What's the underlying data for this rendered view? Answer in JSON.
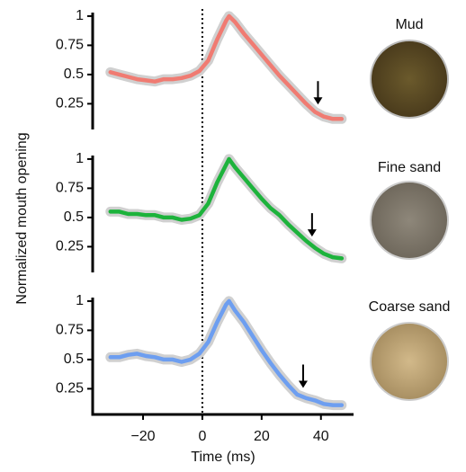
{
  "chart_data": [
    {
      "type": "line",
      "label": "Mud",
      "reference_x": 0,
      "marker_x": 39,
      "x": [
        -31,
        -28,
        -25,
        -22,
        -19,
        -16,
        -13,
        -10,
        -7,
        -4,
        -1,
        2,
        5,
        8,
        9,
        11,
        14,
        17,
        20,
        23,
        26,
        29,
        32,
        35,
        38,
        41,
        44,
        47
      ],
      "series": [
        {
          "color": "#f07b72",
          "values": [
            0.52,
            0.5,
            0.48,
            0.46,
            0.45,
            0.44,
            0.46,
            0.46,
            0.47,
            0.49,
            0.53,
            0.62,
            0.8,
            0.96,
            1.0,
            0.95,
            0.85,
            0.76,
            0.67,
            0.58,
            0.49,
            0.41,
            0.33,
            0.25,
            0.18,
            0.14,
            0.12,
            0.12
          ]
        }
      ],
      "xlim": [
        -37,
        51
      ],
      "ylim": [
        0.03,
        1.03
      ],
      "yticks": [
        0.25,
        0.5,
        0.75,
        1
      ]
    },
    {
      "type": "line",
      "label": "Fine sand",
      "ylabel": "Normalized mouth opening",
      "reference_x": 0,
      "marker_x": 37,
      "x": [
        -31,
        -28,
        -25,
        -22,
        -19,
        -16,
        -13,
        -10,
        -7,
        -4,
        -1,
        2,
        5,
        8,
        9,
        11,
        14,
        17,
        20,
        23,
        26,
        29,
        32,
        35,
        38,
        41,
        44,
        47
      ],
      "series": [
        {
          "color": "#1db33c",
          "values": [
            0.55,
            0.55,
            0.53,
            0.53,
            0.52,
            0.52,
            0.5,
            0.5,
            0.48,
            0.49,
            0.52,
            0.62,
            0.8,
            0.95,
            1.0,
            0.93,
            0.84,
            0.75,
            0.66,
            0.58,
            0.52,
            0.44,
            0.37,
            0.3,
            0.24,
            0.19,
            0.16,
            0.15
          ]
        }
      ],
      "xlim": [
        -37,
        51
      ],
      "ylim": [
        0.03,
        1.03
      ],
      "yticks": [
        0.25,
        0.5,
        0.75,
        1
      ]
    },
    {
      "type": "line",
      "label": "Coarse sand",
      "xlabel": "Time (ms)",
      "reference_x": 0,
      "marker_x": 34,
      "x": [
        -31,
        -28,
        -25,
        -22,
        -19,
        -16,
        -13,
        -10,
        -7,
        -4,
        -1,
        2,
        5,
        8,
        9,
        11,
        14,
        17,
        20,
        23,
        26,
        29,
        32,
        35,
        38,
        41,
        44,
        47
      ],
      "series": [
        {
          "color": "#6d9ef0",
          "values": [
            0.52,
            0.52,
            0.54,
            0.55,
            0.53,
            0.52,
            0.5,
            0.5,
            0.48,
            0.5,
            0.55,
            0.65,
            0.82,
            0.97,
            1.0,
            0.92,
            0.82,
            0.7,
            0.58,
            0.47,
            0.37,
            0.28,
            0.2,
            0.17,
            0.15,
            0.12,
            0.11,
            0.11
          ]
        }
      ],
      "xlim": [
        -37,
        51
      ],
      "ylim": [
        0.03,
        1.03
      ],
      "yticks": [
        0.25,
        0.5,
        0.75,
        1
      ],
      "xticks": [
        {
          "value": -20,
          "label": "−20"
        },
        0,
        20,
        40
      ]
    }
  ]
}
